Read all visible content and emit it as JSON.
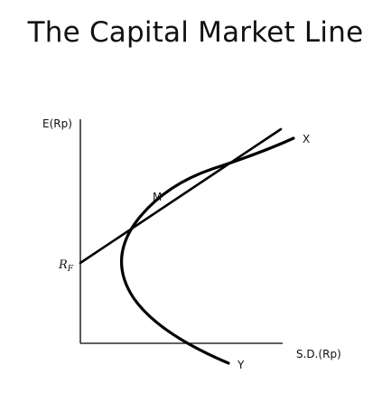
{
  "title": "The Capital Market Line",
  "diagram": {
    "y_axis_label": "E(Rp)",
    "x_axis_label": "S.D.(Rp)",
    "risk_free_label": "R",
    "risk_free_subscript": "F",
    "tangency_label": "M",
    "upper_curve_label": "X",
    "lower_curve_label": "Y",
    "line_color": "#000000"
  }
}
